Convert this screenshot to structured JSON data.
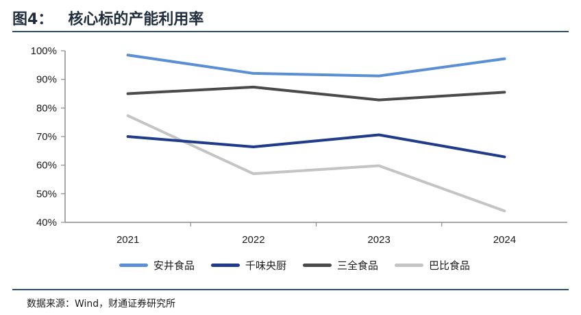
{
  "title": {
    "prefix": "图4：",
    "main": "核心标的产能利用率"
  },
  "colors": {
    "series": [
      "#5b8fd3",
      "#1f3b8a",
      "#4a4a4a",
      "#c4c4c4"
    ],
    "rule": "#2b4e79"
  },
  "legend": [
    {
      "label": "安井食品"
    },
    {
      "label": "千味央厨"
    },
    {
      "label": "三全食品"
    },
    {
      "label": "巴比食品"
    }
  ],
  "source": "数据来源：Wind，财通证券研究所",
  "chart_data": {
    "type": "line",
    "title": "核心标的产能利用率",
    "xlabel": "",
    "ylabel": "",
    "ylim": [
      40,
      100
    ],
    "y_ticks": [
      40,
      50,
      60,
      70,
      80,
      90,
      100
    ],
    "y_tick_labels": [
      "40%",
      "50%",
      "60%",
      "70%",
      "80%",
      "90%",
      "100%"
    ],
    "categories": [
      "2021",
      "2022",
      "2023",
      "2024"
    ],
    "series": [
      {
        "name": "安井食品",
        "values": [
          98.5,
          92.1,
          91.2,
          97.2
        ]
      },
      {
        "name": "千味央厨",
        "values": [
          70.0,
          66.4,
          70.6,
          62.9
        ]
      },
      {
        "name": "三全食品",
        "values": [
          85.0,
          87.3,
          82.8,
          85.5
        ]
      },
      {
        "name": "巴比食品",
        "values": [
          77.3,
          57.0,
          59.8,
          44.0
        ]
      }
    ],
    "grid": false,
    "legend_position": "bottom"
  }
}
